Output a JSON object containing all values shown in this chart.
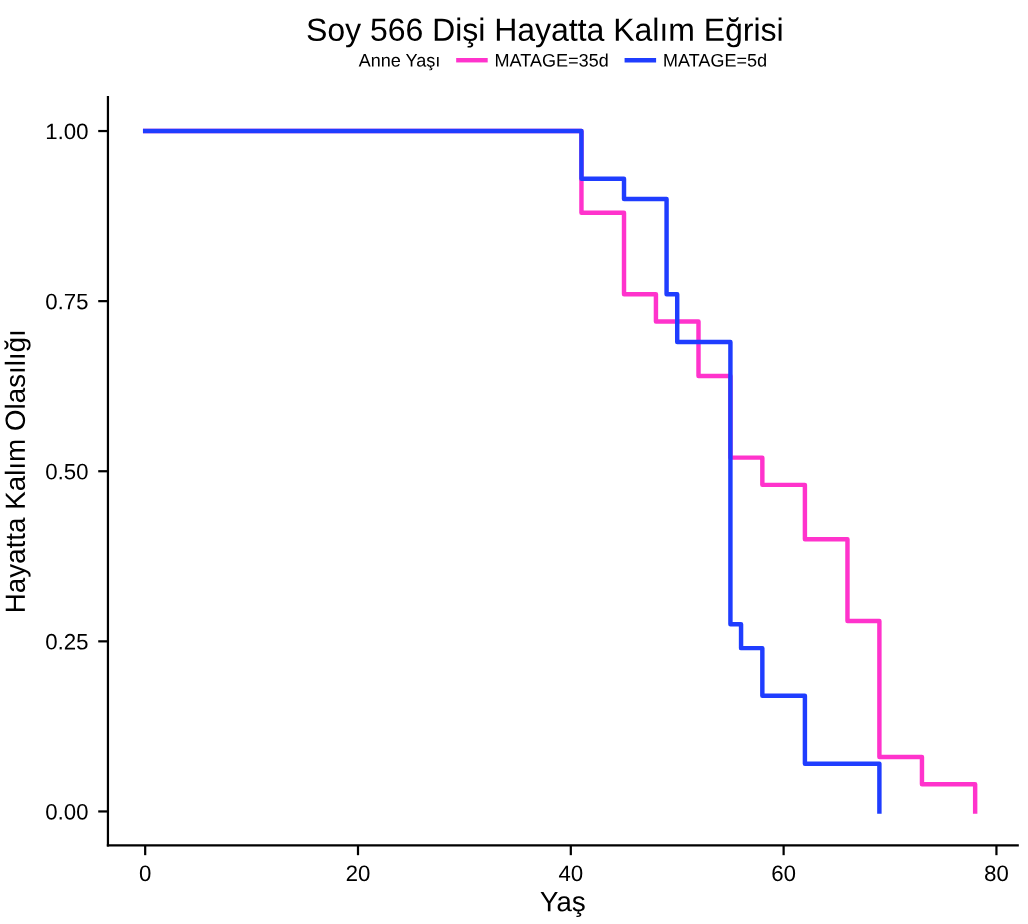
{
  "chart_data": {
    "type": "step",
    "title": "Soy 566 Dişi Hayatta Kalım Eğrisi",
    "xlabel": "Yaş",
    "ylabel": "Hayatta Kalım Olasılığı",
    "legend_title": "Anne Yaşı",
    "legend": "top",
    "grid": false,
    "series": [
      {
        "name": "MATAGE=35d",
        "color": "#ff33cc",
        "x": [
          0,
          41,
          45,
          48,
          52,
          55,
          58,
          62,
          66,
          69,
          73,
          78
        ],
        "values": [
          1.0,
          0.88,
          0.76,
          0.72,
          0.64,
          0.52,
          0.48,
          0.4,
          0.28,
          0.08,
          0.04,
          0.0
        ]
      },
      {
        "name": "MATAGE=5d",
        "color": "#1f3dff",
        "x": [
          0,
          41,
          45,
          49,
          50,
          55,
          56,
          58,
          62,
          69
        ],
        "values": [
          1.0,
          0.93,
          0.9,
          0.76,
          0.69,
          0.275,
          0.24,
          0.17,
          0.07,
          0.0
        ]
      }
    ],
    "xlim": [
      -3.5,
      82
    ],
    "ylim": [
      -0.05,
      1.05
    ],
    "xticks": [
      0,
      20,
      40,
      60,
      80
    ],
    "yticks": [
      {
        "value": 0,
        "label": "0.00"
      },
      {
        "value": 0.25,
        "label": "0.25"
      },
      {
        "value": 0.5,
        "label": "0.50"
      },
      {
        "value": 0.75,
        "label": "0.75"
      },
      {
        "value": 1,
        "label": "1.00"
      }
    ]
  }
}
